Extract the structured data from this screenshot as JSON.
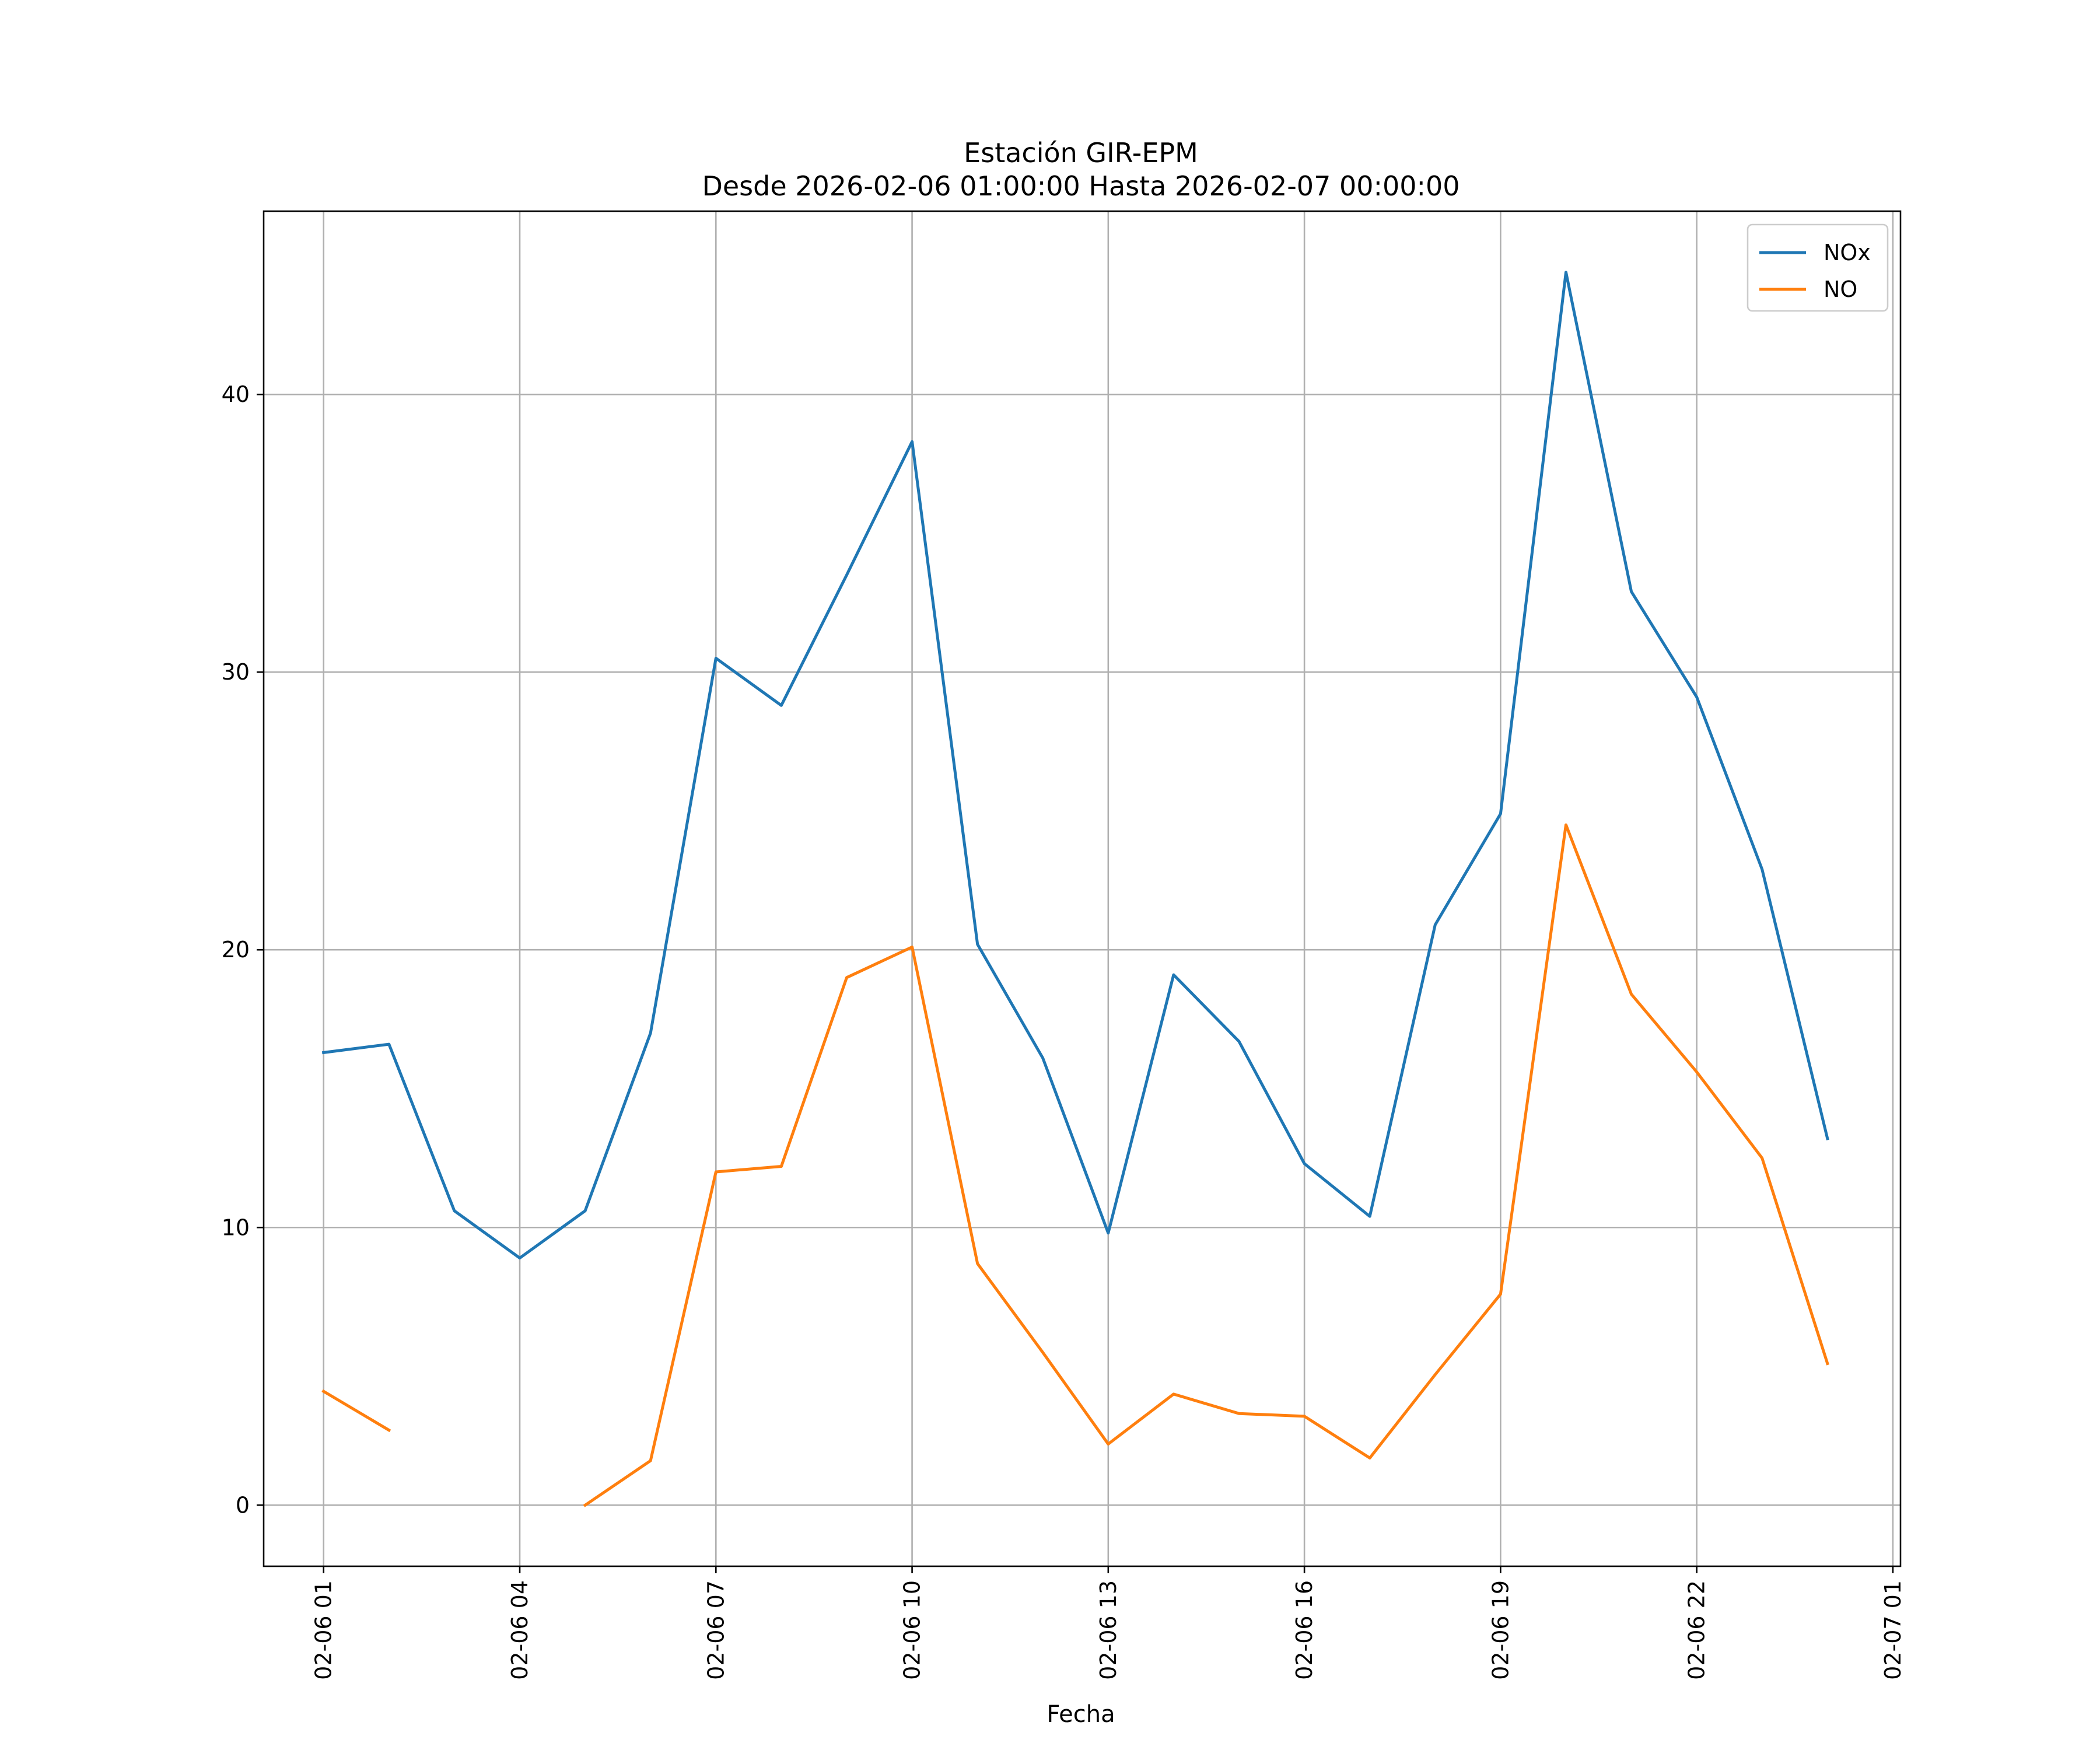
{
  "chart_data": {
    "type": "line",
    "title": "Estación GIR-EPM",
    "subtitle": "Desde 2026-02-06 01:00:00 Hasta 2026-02-07 00:00:00",
    "xlabel": "Fecha",
    "ylabel": "",
    "x": [
      "2026-02-06 01:00",
      "2026-02-06 02:00",
      "2026-02-06 03:00",
      "2026-02-06 04:00",
      "2026-02-06 05:00",
      "2026-02-06 06:00",
      "2026-02-06 07:00",
      "2026-02-06 08:00",
      "2026-02-06 09:00",
      "2026-02-06 10:00",
      "2026-02-06 11:00",
      "2026-02-06 12:00",
      "2026-02-06 13:00",
      "2026-02-06 14:00",
      "2026-02-06 15:00",
      "2026-02-06 16:00",
      "2026-02-06 17:00",
      "2026-02-06 18:00",
      "2026-02-06 19:00",
      "2026-02-06 20:00",
      "2026-02-06 21:00",
      "2026-02-06 22:00",
      "2026-02-06 23:00",
      "2026-02-07 00:00"
    ],
    "xlim": [
      "2026-02-06 00:05",
      "2026-02-07 01:07"
    ],
    "x_ticks": [
      "2026-02-06 01:00",
      "2026-02-06 04:00",
      "2026-02-06 07:00",
      "2026-02-06 10:00",
      "2026-02-06 13:00",
      "2026-02-06 16:00",
      "2026-02-06 19:00",
      "2026-02-06 22:00",
      "2026-02-07 01:00"
    ],
    "x_tick_labels": [
      "02-06 01",
      "02-06 04",
      "02-06 07",
      "02-06 10",
      "02-06 13",
      "02-06 16",
      "02-06 19",
      "02-06 22",
      "02-07 01"
    ],
    "ylim": [
      -2.2,
      46.6
    ],
    "y_ticks": [
      0,
      10,
      20,
      30,
      40
    ],
    "y_tick_labels": [
      "0",
      "10",
      "20",
      "30",
      "40"
    ],
    "grid": true,
    "legend_position": "top-right",
    "series": [
      {
        "name": "NOx",
        "color": "#1f77b4",
        "values": [
          16.3,
          16.6,
          10.6,
          8.9,
          10.6,
          17.0,
          30.5,
          28.8,
          33.5,
          38.3,
          20.2,
          16.1,
          9.8,
          19.1,
          16.7,
          12.3,
          10.4,
          20.9,
          24.9,
          44.4,
          32.9,
          29.1,
          22.9,
          13.2
        ]
      },
      {
        "name": "NO",
        "color": "#ff7f0e",
        "values": [
          4.1,
          2.7,
          null,
          null,
          0.0,
          1.6,
          12.0,
          12.2,
          19.0,
          20.1,
          8.7,
          5.5,
          2.2,
          4.0,
          3.3,
          3.2,
          1.7,
          4.7,
          7.6,
          24.5,
          18.4,
          15.6,
          12.5,
          5.1
        ]
      }
    ]
  }
}
